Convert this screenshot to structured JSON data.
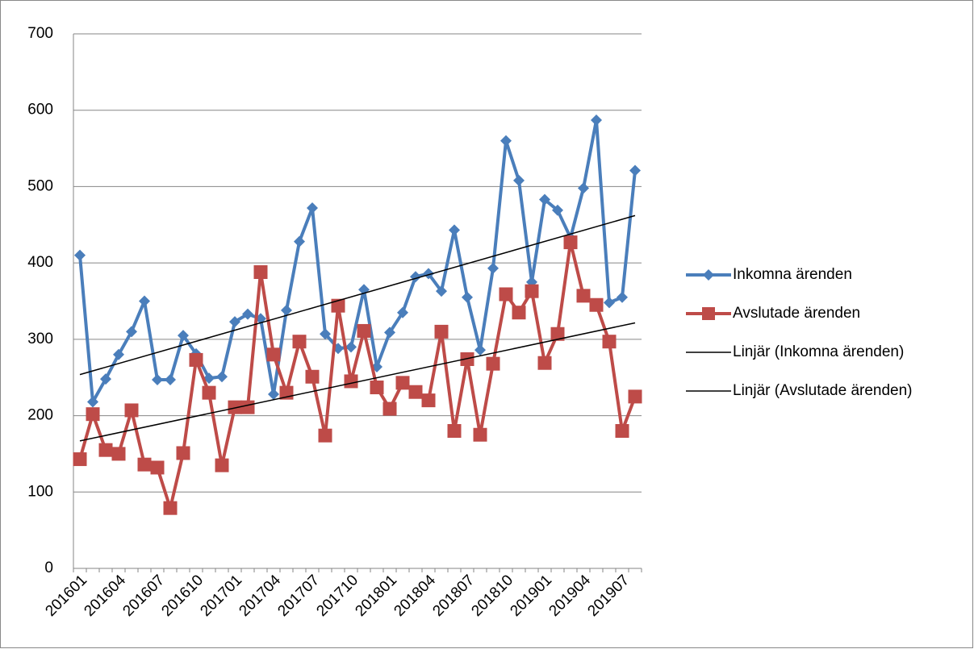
{
  "chart_data": {
    "type": "line",
    "categories": [
      "201601",
      null,
      null,
      "201604",
      null,
      null,
      "201607",
      null,
      null,
      "201610",
      null,
      null,
      "201701",
      null,
      null,
      "201704",
      null,
      null,
      "201707",
      null,
      null,
      "201710",
      null,
      null,
      "201801",
      null,
      null,
      "201804",
      null,
      null,
      "201807",
      null,
      null,
      "201810",
      null,
      null,
      "201901",
      null,
      null,
      "201904",
      null,
      null,
      "201907",
      null
    ],
    "series": [
      {
        "name": "Inkomna ärenden",
        "color": "#4a7ebb",
        "marker": "diamond",
        "values": [
          410,
          218,
          248,
          280,
          310,
          350,
          247,
          247,
          305,
          281,
          249,
          251,
          323,
          333,
          327,
          228,
          338,
          428,
          472,
          307,
          288,
          290,
          365,
          264,
          309,
          335,
          382,
          386,
          363,
          443,
          355,
          286,
          393,
          560,
          508,
          375,
          483,
          469,
          433,
          498,
          587,
          348,
          355,
          521
        ],
        "trendline": {
          "name": "Linjär (Inkomna ärenden)",
          "color": "#000000"
        }
      },
      {
        "name": "Avslutade ärenden",
        "color": "#be4b48",
        "marker": "square",
        "values": [
          143,
          202,
          155,
          150,
          207,
          136,
          132,
          79,
          151,
          273,
          230,
          135,
          211,
          211,
          388,
          280,
          230,
          297,
          251,
          174,
          344,
          245,
          311,
          237,
          209,
          243,
          231,
          220,
          310,
          180,
          274,
          175,
          268,
          359,
          335,
          363,
          269,
          307,
          427,
          357,
          345,
          297,
          180,
          225
        ],
        "trendline": {
          "name": "Linjär (Avslutade ärenden)",
          "color": "#000000"
        }
      }
    ],
    "ylim": [
      0,
      700
    ],
    "yticks": [
      0,
      100,
      200,
      300,
      400,
      500,
      600,
      700
    ],
    "grid": true
  }
}
